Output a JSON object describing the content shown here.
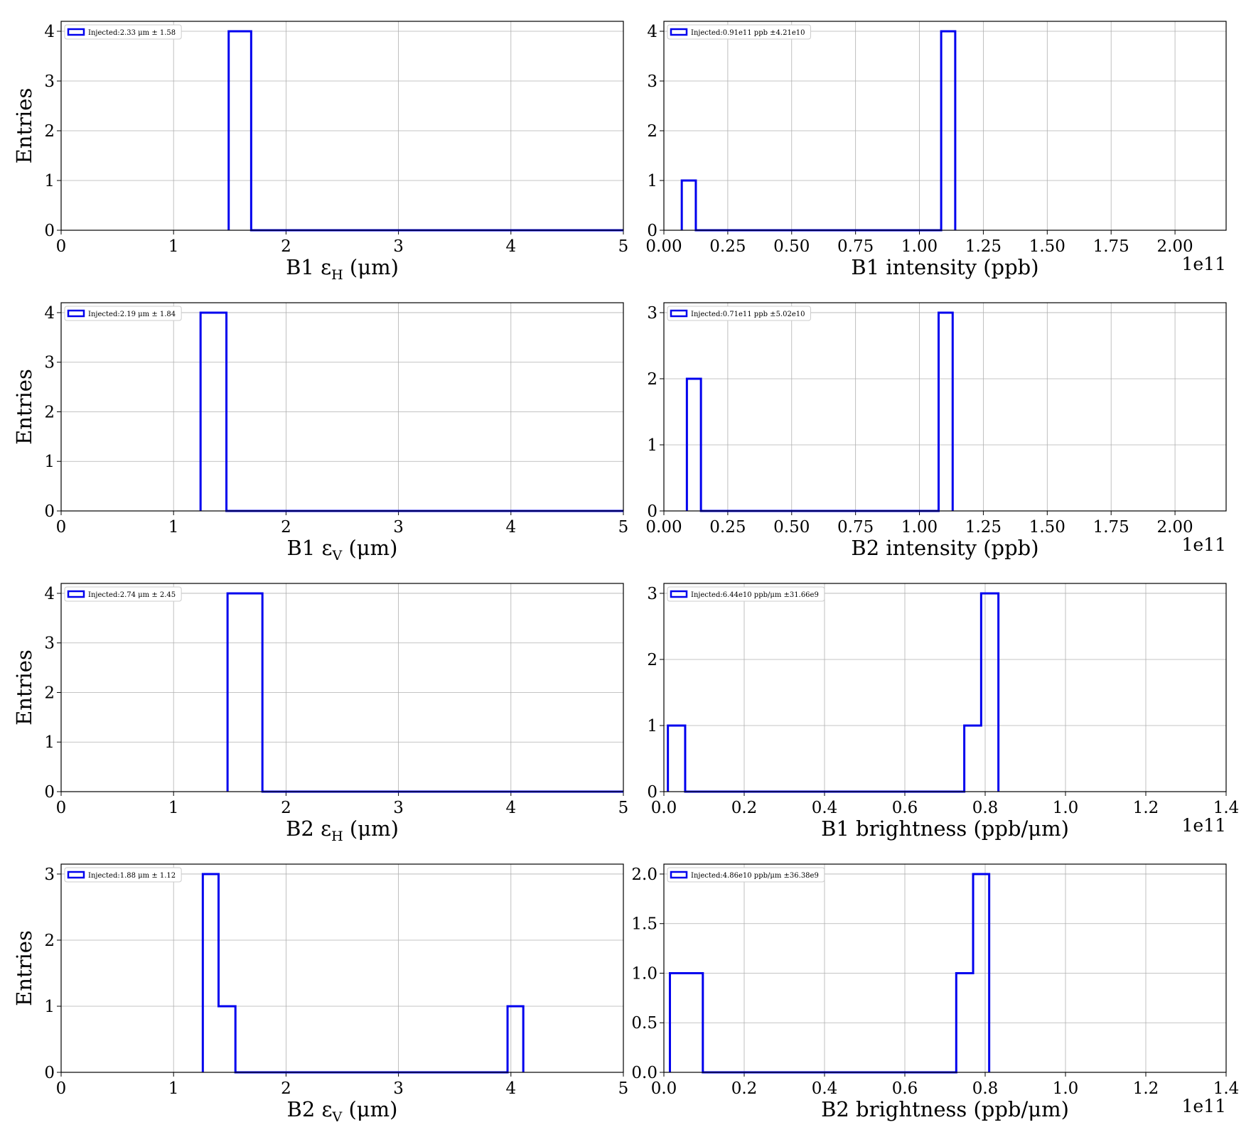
{
  "figure": {
    "panel_count": 8,
    "layout": "4 rows x 2 columns",
    "step_color": "#0000ee",
    "grid": true
  },
  "chart_data": [
    {
      "type": "bar",
      "histtype": "step",
      "xlabel": "B1 εH (μm)",
      "xlabel_main": "B1 ε",
      "xlabel_sub": "H",
      "xlabel_unit": "(μm)",
      "ylabel": "Entries",
      "xlim": [
        0,
        5
      ],
      "ylim": [
        0,
        4.2
      ],
      "xticks": [
        0,
        1,
        2,
        3,
        4,
        5
      ],
      "xtick_labels": [
        "0",
        "1",
        "2",
        "3",
        "4",
        "5"
      ],
      "yticks": [
        0,
        1,
        2,
        3,
        4
      ],
      "ytick_labels": [
        "0",
        "1",
        "2",
        "3",
        "4"
      ],
      "x_offset_label": "",
      "bin_edges": [
        1.49,
        1.69,
        5.0
      ],
      "counts": [
        4,
        0
      ],
      "legend": "Injected:2.33 μm ± 1.58",
      "legend_loc": "upper left"
    },
    {
      "type": "bar",
      "histtype": "step",
      "xlabel": "B1 intensity (ppb)",
      "xlabel_main": "B1 intensity (ppb)",
      "xlabel_sub": "",
      "xlabel_unit": "",
      "ylabel": "",
      "xlim": [
        0,
        2.2
      ],
      "ylim": [
        0,
        4.2
      ],
      "xticks": [
        0,
        0.25,
        0.5,
        0.75,
        1.0,
        1.25,
        1.5,
        1.75,
        2.0
      ],
      "xtick_labels": [
        "0.00",
        "0.25",
        "0.50",
        "0.75",
        "1.00",
        "1.25",
        "1.50",
        "1.75",
        "2.00"
      ],
      "yticks": [
        0,
        1,
        2,
        3,
        4
      ],
      "ytick_labels": [
        "0",
        "1",
        "2",
        "3",
        "4"
      ],
      "x_offset_label": "1e11",
      "bin_edges": [
        0.07,
        0.125,
        1.085,
        1.14
      ],
      "counts": [
        1,
        0,
        4
      ],
      "legend": "Injected:0.91e11 ppb ±4.21e10",
      "legend_loc": "upper left"
    },
    {
      "type": "bar",
      "histtype": "step",
      "xlabel": "B1 εV (μm)",
      "xlabel_main": "B1 ε",
      "xlabel_sub": "V",
      "xlabel_unit": "(μm)",
      "ylabel": "Entries",
      "xlim": [
        0,
        5
      ],
      "ylim": [
        0,
        4.2
      ],
      "xticks": [
        0,
        1,
        2,
        3,
        4,
        5
      ],
      "xtick_labels": [
        "0",
        "1",
        "2",
        "3",
        "4",
        "5"
      ],
      "yticks": [
        0,
        1,
        2,
        3,
        4
      ],
      "ytick_labels": [
        "0",
        "1",
        "2",
        "3",
        "4"
      ],
      "x_offset_label": "",
      "bin_edges": [
        1.24,
        1.47,
        5.0
      ],
      "counts": [
        4,
        0
      ],
      "legend": "Injected:2.19 μm ± 1.84",
      "legend_loc": "upper left"
    },
    {
      "type": "bar",
      "histtype": "step",
      "xlabel": "B2 intensity (ppb)",
      "xlabel_main": "B2 intensity (ppb)",
      "xlabel_sub": "",
      "xlabel_unit": "",
      "ylabel": "",
      "xlim": [
        0,
        2.2
      ],
      "ylim": [
        0,
        3.15
      ],
      "xticks": [
        0,
        0.25,
        0.5,
        0.75,
        1.0,
        1.25,
        1.5,
        1.75,
        2.0
      ],
      "xtick_labels": [
        "0.00",
        "0.25",
        "0.50",
        "0.75",
        "1.00",
        "1.25",
        "1.50",
        "1.75",
        "2.00"
      ],
      "yticks": [
        0,
        1,
        2,
        3
      ],
      "ytick_labels": [
        "0",
        "1",
        "2",
        "3"
      ],
      "x_offset_label": "1e11",
      "bin_edges": [
        0.09,
        0.145,
        1.075,
        1.13
      ],
      "counts": [
        2,
        0,
        3
      ],
      "legend": "Injected:0.71e11 ppb ±5.02e10",
      "legend_loc": "upper left"
    },
    {
      "type": "bar",
      "histtype": "step",
      "xlabel": "B2 εH (μm)",
      "xlabel_main": "B2 ε",
      "xlabel_sub": "H",
      "xlabel_unit": "(μm)",
      "ylabel": "Entries",
      "xlim": [
        0,
        5
      ],
      "ylim": [
        0,
        4.2
      ],
      "xticks": [
        0,
        1,
        2,
        3,
        4,
        5
      ],
      "xtick_labels": [
        "0",
        "1",
        "2",
        "3",
        "4",
        "5"
      ],
      "yticks": [
        0,
        1,
        2,
        3,
        4
      ],
      "ytick_labels": [
        "0",
        "1",
        "2",
        "3",
        "4"
      ],
      "x_offset_label": "",
      "bin_edges": [
        1.48,
        1.79,
        5.0
      ],
      "counts": [
        4,
        0
      ],
      "legend": "Injected:2.74 μm ± 2.45",
      "legend_loc": "upper left"
    },
    {
      "type": "bar",
      "histtype": "step",
      "xlabel": "B1 brightness (ppb/μm)",
      "xlabel_main": "B1 brightness (ppb/μm)",
      "xlabel_sub": "",
      "xlabel_unit": "",
      "ylabel": "",
      "xlim": [
        0,
        1.4
      ],
      "ylim": [
        0,
        3.15
      ],
      "xticks": [
        0,
        0.2,
        0.4,
        0.6,
        0.8,
        1.0,
        1.2,
        1.4
      ],
      "xtick_labels": [
        "0.0",
        "0.2",
        "0.4",
        "0.6",
        "0.8",
        "1.0",
        "1.2",
        "1.4"
      ],
      "yticks": [
        0,
        1,
        2,
        3
      ],
      "ytick_labels": [
        "0",
        "1",
        "2",
        "3"
      ],
      "x_offset_label": "1e11",
      "bin_edges": [
        0.01,
        0.053,
        0.748,
        0.79,
        0.833
      ],
      "counts": [
        1,
        0,
        1,
        3
      ],
      "legend": "Injected:6.44e10 ppb/μm ±31.66e9",
      "legend_loc": "upper left"
    },
    {
      "type": "bar",
      "histtype": "step",
      "xlabel": "B2 εV (μm)",
      "xlabel_main": "B2 ε",
      "xlabel_sub": "V",
      "xlabel_unit": "(μm)",
      "ylabel": "Entries",
      "xlim": [
        0,
        5
      ],
      "ylim": [
        0,
        3.15
      ],
      "xticks": [
        0,
        1,
        2,
        3,
        4,
        5
      ],
      "xtick_labels": [
        "0",
        "1",
        "2",
        "3",
        "4",
        "5"
      ],
      "yticks": [
        0,
        1,
        2,
        3
      ],
      "ytick_labels": [
        "0",
        "1",
        "2",
        "3"
      ],
      "x_offset_label": "",
      "bin_edges": [
        1.26,
        1.4,
        1.55,
        3.97,
        4.11
      ],
      "counts": [
        3,
        1,
        0,
        1
      ],
      "legend": "Injected:1.88 μm ± 1.12",
      "legend_loc": "upper left"
    },
    {
      "type": "bar",
      "histtype": "step",
      "xlabel": "B2 brightness (ppb/μm)",
      "xlabel_main": "B2 brightness (ppb/μm)",
      "xlabel_sub": "",
      "xlabel_unit": "",
      "ylabel": "",
      "xlim": [
        0,
        1.4
      ],
      "ylim": [
        0,
        2.1
      ],
      "xticks": [
        0,
        0.2,
        0.4,
        0.6,
        0.8,
        1.0,
        1.2,
        1.4
      ],
      "xtick_labels": [
        "0.0",
        "0.2",
        "0.4",
        "0.6",
        "0.8",
        "1.0",
        "1.2",
        "1.4"
      ],
      "yticks": [
        0,
        0.5,
        1.0,
        1.5,
        2.0
      ],
      "ytick_labels": [
        "0.0",
        "0.5",
        "1.0",
        "1.5",
        "2.0"
      ],
      "x_offset_label": "1e11",
      "bin_edges": [
        0.015,
        0.097,
        0.728,
        0.77,
        0.81
      ],
      "counts": [
        1,
        0,
        1,
        2
      ],
      "legend": "Injected:4.86e10 ppb/μm ±36.38e9",
      "legend_loc": "upper left"
    }
  ]
}
